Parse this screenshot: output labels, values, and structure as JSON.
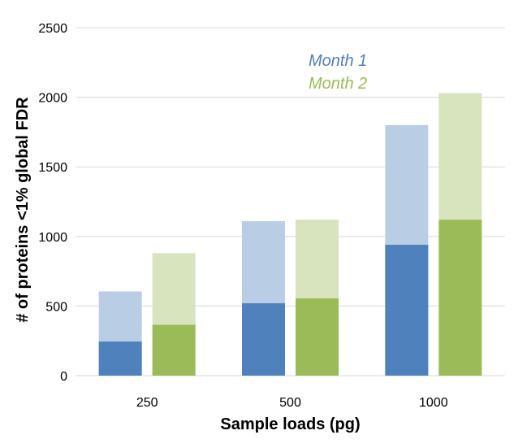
{
  "chart_data": {
    "type": "bar",
    "subtype": "stacked-grouped",
    "title": "",
    "xlabel": "Sample loads (pg)",
    "ylabel": "# of proteins <1% global  FDR",
    "categories": [
      "250",
      "500",
      "1000"
    ],
    "ylim": [
      0,
      2500
    ],
    "yticks": [
      "0",
      "500",
      "1000",
      "1500",
      "2000",
      "2500"
    ],
    "grid": true,
    "legend_position": "top-center",
    "series": [
      {
        "name": "Month 1",
        "color": "#4f81bd",
        "light_color": "#b9cde5",
        "base_values": [
          245,
          520,
          940
        ],
        "total_values": [
          605,
          1110,
          1800
        ]
      },
      {
        "name": "Month 2",
        "color": "#9bbb59",
        "light_color": "#d7e4bd",
        "base_values": [
          365,
          555,
          1120
        ],
        "total_values": [
          880,
          1120,
          2030
        ]
      }
    ]
  }
}
